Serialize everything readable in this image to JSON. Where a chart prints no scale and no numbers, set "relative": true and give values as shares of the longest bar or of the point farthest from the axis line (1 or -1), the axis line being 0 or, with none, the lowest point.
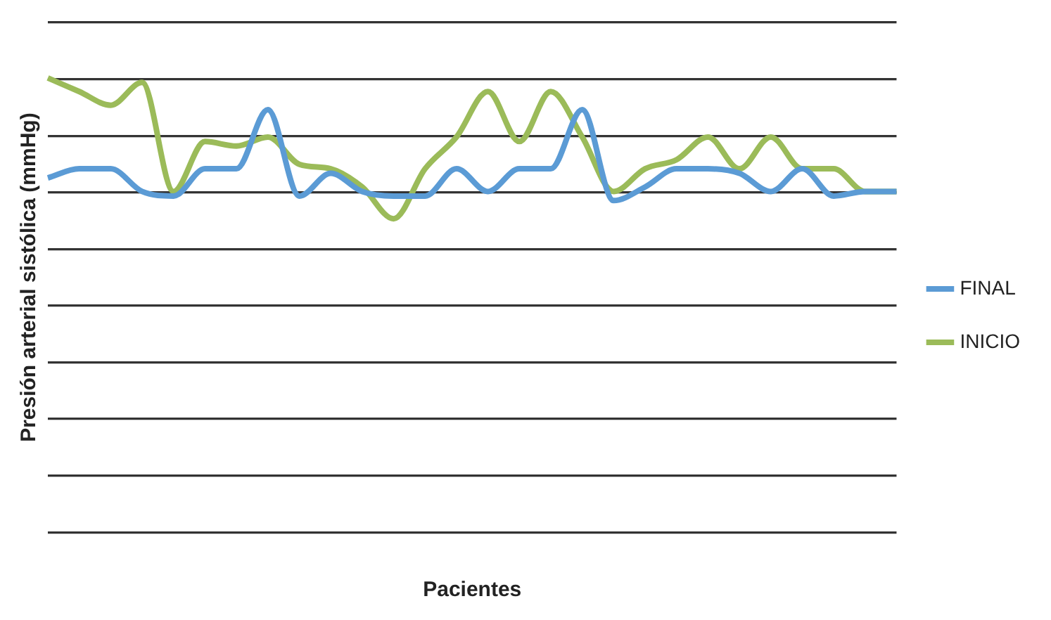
{
  "chart_data": {
    "type": "line",
    "xlabel": "Pacientes",
    "ylabel": "Presión arterial sistólica (mmHg)",
    "relative": true,
    "grid": "y",
    "legend": "right",
    "marker": "none",
    "line_style": "solid",
    "categories": [
      null,
      null,
      null,
      null,
      null,
      null,
      null,
      null,
      null,
      null,
      null,
      null,
      null,
      null,
      null,
      null,
      null,
      null,
      null,
      null,
      null,
      null,
      null,
      null,
      null,
      null,
      null,
      null
    ],
    "series": [
      {
        "name": "FINAL",
        "color": "#5b9bd5",
        "values": [
          0.78,
          0.8,
          0.8,
          0.75,
          0.74,
          0.8,
          0.8,
          0.93,
          0.74,
          0.79,
          0.75,
          0.74,
          0.74,
          0.8,
          0.75,
          0.8,
          0.8,
          0.93,
          0.73,
          0.76,
          0.8,
          0.8,
          0.79,
          0.75,
          0.8,
          0.74,
          0.75,
          0.75
        ]
      },
      {
        "name": "INICIO",
        "color": "#9bbb59",
        "values": [
          1,
          0.97,
          0.94,
          0.99,
          0.75,
          0.86,
          0.85,
          0.87,
          0.81,
          0.8,
          0.76,
          0.69,
          0.8,
          0.87,
          0.97,
          0.86,
          0.97,
          0.87,
          0.75,
          0.8,
          0.82,
          0.87,
          0.8,
          0.87,
          0.8,
          0.8,
          0.75,
          0.75
        ]
      }
    ]
  }
}
